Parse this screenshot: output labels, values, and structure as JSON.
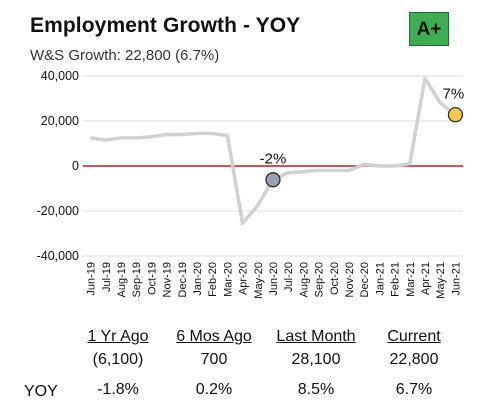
{
  "header": {
    "title": "Employment Growth - YOY",
    "subtitle": "W&S Growth: 22,800 (6.7%)",
    "grade": "A+",
    "grade_color": "#3fae53"
  },
  "chart_data": {
    "type": "line",
    "title": "Employment Growth - YOY",
    "xlabel": "",
    "ylabel": "",
    "ylim": [
      -40000,
      40000
    ],
    "yticks": [
      40000,
      20000,
      0,
      -20000,
      -40000
    ],
    "ytick_labels": [
      "40,000",
      "20,000",
      "0",
      "-20,000",
      "-40,000"
    ],
    "categories": [
      "Jun-19",
      "Jul-19",
      "Aug-19",
      "Sep-19",
      "Oct-19",
      "Nov-19",
      "Dec-19",
      "Jan-20",
      "Feb-20",
      "Mar-20",
      "Apr-20",
      "May-20",
      "Jun-20",
      "Jul-20",
      "Aug-20",
      "Sep-20",
      "Oct-20",
      "Nov-20",
      "Dec-20",
      "Jan-21",
      "Feb-21",
      "Mar-21",
      "Apr-21",
      "May-21",
      "Jun-21"
    ],
    "series": [
      {
        "values": [
          12500,
          11500,
          12500,
          12500,
          13000,
          14000,
          14000,
          14500,
          14500,
          13500,
          -25500,
          -17500,
          -6100,
          -3000,
          -2500,
          -2000,
          -2000,
          -2000,
          700,
          0,
          0,
          1000,
          39000,
          28100,
          22800
        ],
        "color": "#d0d0d0"
      }
    ],
    "zero_line_color": "#b22222",
    "grid": true,
    "highlights": [
      {
        "category": "Jun-20",
        "value": -6100,
        "label": "-2%",
        "color": "#9aa0b4"
      },
      {
        "category": "Jun-21",
        "value": 22800,
        "label": "7%",
        "color": "#f2c94c"
      }
    ]
  },
  "stats": {
    "row_label": "YOY",
    "columns": [
      {
        "header": "1 Yr Ago",
        "value": "(6,100)",
        "yoy": "-1.8%"
      },
      {
        "header": "6 Mos Ago",
        "value": "700",
        "yoy": "0.2%"
      },
      {
        "header": "Last Month",
        "value": "28,100",
        "yoy": "8.5%"
      },
      {
        "header": "Current",
        "value": "22,800",
        "yoy": "6.7%"
      }
    ]
  }
}
